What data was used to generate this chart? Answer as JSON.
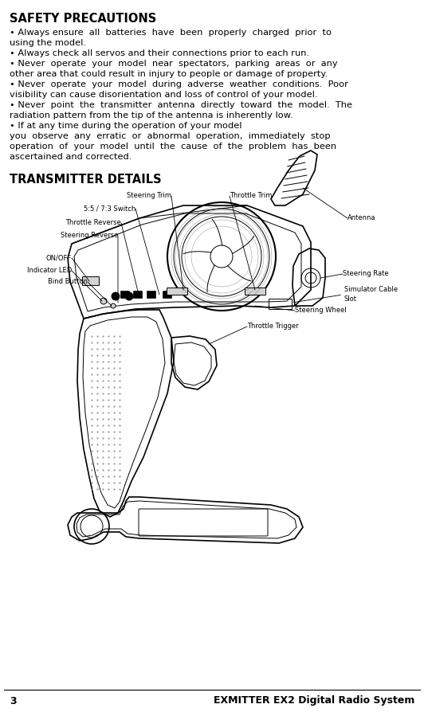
{
  "page_number": "3",
  "footer_text": "EXMITTER EX2 Digital Radio System",
  "safety_title": "SAFETY PRECAUTIONS",
  "transmitter_title": "TRANSMITTER DETAILS",
  "bg_color": "#ffffff",
  "text_color": "#000000",
  "font_size_title": 10.5,
  "font_size_body": 8.2,
  "font_size_label": 6.0,
  "font_size_footer": 9.0,
  "bullet_lines": [
    [
      "• Always ensure  all  batteries  have  been  properly  charged  prior  to",
      "using the model."
    ],
    [
      "• Always check all servos and their connections prior to each run."
    ],
    [
      "• Never  operate  your  model  near  spectators,  parking  areas  or  any",
      "other area that could result in injury to people or damage of property."
    ],
    [
      "• Never  operate  your  model  during  adverse  weather  conditions.  Poor",
      "visibility can cause disorientation and loss of control of your model."
    ],
    [
      "• Never  point  the  transmitter  antenna  directly  toward  the  model.  The",
      "radiation pattern from the tip of the antenna is inherently low."
    ],
    [
      "• If at any time during the operation of your model",
      "you  observe  any  erratic  or  abnormal  operation,  immediately  stop",
      "operation  of  your  model  until  the  cause  of  the  problem  has  been",
      "ascertained and corrected."
    ]
  ]
}
